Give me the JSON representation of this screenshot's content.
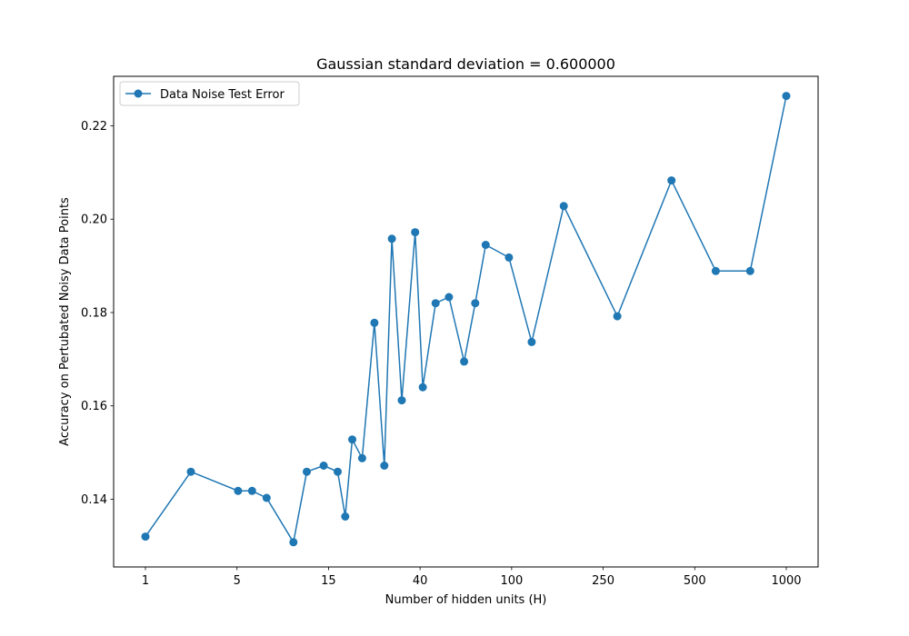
{
  "chart_data": {
    "type": "line",
    "title": "Gaussian standard deviation = 0.600000",
    "xlabel": "Number of hidden units (H)",
    "ylabel": "Accuracy on Pertubated Noisy Data Points",
    "x_tick_labels": [
      "1",
      "5",
      "15",
      "40",
      "100",
      "250",
      "500",
      "1000"
    ],
    "y_ticks": [
      0.14,
      0.16,
      0.18,
      0.2,
      0.22
    ],
    "y_tick_labels": [
      "0.14",
      "0.16",
      "0.18",
      "0.20",
      "0.22"
    ],
    "ylim": [
      0.1255,
      0.2306
    ],
    "grid": false,
    "legend": {
      "location": "top-left",
      "entries": [
        "Data Noise Test Error"
      ]
    },
    "color": "#1f77b4",
    "series": [
      {
        "name": "Data Noise Test Error",
        "x_index": [
          0,
          0.78,
          1.59,
          1.83,
          2.08,
          2.54,
          2.77,
          3.06,
          3.3,
          3.43,
          3.55,
          3.72,
          3.93,
          4.1,
          4.23,
          4.4,
          4.63,
          4.76,
          4.98,
          5.21,
          5.47,
          5.66,
          5.84,
          6.24,
          6.63,
          7.18,
          8.1,
          9.03,
          9.79,
          10.38,
          11.0
        ],
        "y": [
          0.132,
          0.1459,
          0.1418,
          0.1418,
          0.1403,
          0.1308,
          0.1459,
          0.1472,
          0.1459,
          0.1363,
          0.1528,
          0.1488,
          0.1778,
          0.1472,
          0.1958,
          0.1612,
          0.1972,
          0.164,
          0.182,
          0.1833,
          0.1695,
          0.182,
          0.1945,
          0.1918,
          0.1737,
          0.2028,
          0.1792,
          0.2083,
          0.1889,
          0.1889,
          0.2264
        ]
      }
    ]
  }
}
